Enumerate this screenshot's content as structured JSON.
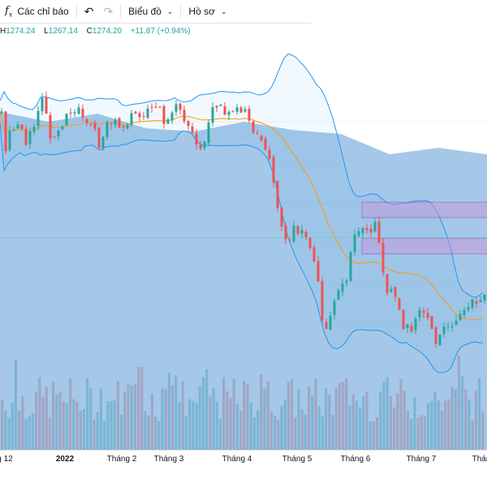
{
  "toolbar": {
    "indicators_label": "Các chỉ báo",
    "chart_label": "Biểu đồ",
    "profile_label": "Hồ sơ",
    "fx_glyph": "f",
    "fx_sub": "x"
  },
  "ohlc": {
    "h_label": "H",
    "h_value": "1274.24",
    "l_label": "L",
    "l_value": "1267.14",
    "c_label": "C",
    "c_value": "1274.20",
    "change": "+11.87 (+0.94%)"
  },
  "colors": {
    "up": "#26a69a",
    "down": "#ef5350",
    "band": "#2196f3",
    "basis": "#ff9800",
    "zone": "#ce93d8",
    "vol_fill": "#5b9bd5"
  },
  "axis": {
    "ticks": [
      "g 12",
      "2022",
      "Tháng 2",
      "Tháng 3",
      "Tháng 4",
      "Tháng 5",
      "Tháng 6",
      "Tháng 7",
      "Thán"
    ]
  },
  "chart_data": {
    "type": "candlestick",
    "indicator": "Bollinger Bands",
    "price_range": [
      1100,
      1560
    ],
    "zones": [
      {
        "name": "zone-upper",
        "from": 1356,
        "to": 1373
      },
      {
        "name": "zone-lower",
        "from": 1316,
        "to": 1333
      }
    ],
    "reference_line": 1334,
    "price_path": [
      [
        0,
        1468
      ],
      [
        3,
        1415
      ],
      [
        8,
        1445
      ],
      [
        20,
        1460
      ],
      [
        30,
        1440
      ],
      [
        40,
        1455
      ],
      [
        50,
        1490
      ],
      [
        60,
        1448
      ],
      [
        65,
        1445
      ],
      [
        80,
        1470
      ],
      [
        90,
        1478
      ],
      [
        100,
        1465
      ],
      [
        110,
        1462
      ],
      [
        118,
        1440
      ],
      [
        122,
        1432
      ],
      [
        130,
        1460
      ],
      [
        142,
        1460
      ],
      [
        150,
        1460
      ],
      [
        160,
        1468
      ],
      [
        170,
        1465
      ],
      [
        180,
        1482
      ],
      [
        190,
        1480
      ],
      [
        200,
        1465
      ],
      [
        215,
        1480
      ],
      [
        230,
        1460
      ],
      [
        245,
        1432
      ],
      [
        250,
        1445
      ],
      [
        260,
        1475
      ],
      [
        270,
        1475
      ],
      [
        280,
        1468
      ],
      [
        290,
        1475
      ],
      [
        300,
        1480
      ],
      [
        305,
        1465
      ],
      [
        310,
        1450
      ],
      [
        320,
        1440
      ],
      [
        330,
        1415
      ],
      [
        335,
        1390
      ],
      [
        345,
        1350
      ],
      [
        352,
        1322
      ],
      [
        358,
        1345
      ],
      [
        365,
        1340
      ],
      [
        372,
        1345
      ],
      [
        380,
        1325
      ],
      [
        390,
        1280
      ],
      [
        398,
        1230
      ],
      [
        405,
        1250
      ],
      [
        415,
        1270
      ],
      [
        425,
        1290
      ],
      [
        432,
        1332
      ],
      [
        440,
        1340
      ],
      [
        455,
        1342
      ],
      [
        462,
        1350
      ],
      [
        468,
        1300
      ],
      [
        475,
        1270
      ],
      [
        480,
        1275
      ],
      [
        490,
        1260
      ],
      [
        495,
        1230
      ],
      [
        505,
        1235
      ],
      [
        515,
        1255
      ],
      [
        525,
        1250
      ],
      [
        535,
        1220
      ],
      [
        545,
        1240
      ],
      [
        555,
        1240
      ],
      [
        565,
        1250
      ],
      [
        575,
        1262
      ],
      [
        585,
        1265
      ],
      [
        600,
        1280
      ]
    ],
    "volume_path": [
      [
        0,
        138
      ],
      [
        60,
        150
      ],
      [
        120,
        140
      ],
      [
        180,
        158
      ],
      [
        240,
        162
      ],
      [
        300,
        150
      ],
      [
        360,
        160
      ],
      [
        420,
        165
      ],
      [
        480,
        190
      ],
      [
        540,
        182
      ],
      [
        600,
        190
      ]
    ]
  }
}
